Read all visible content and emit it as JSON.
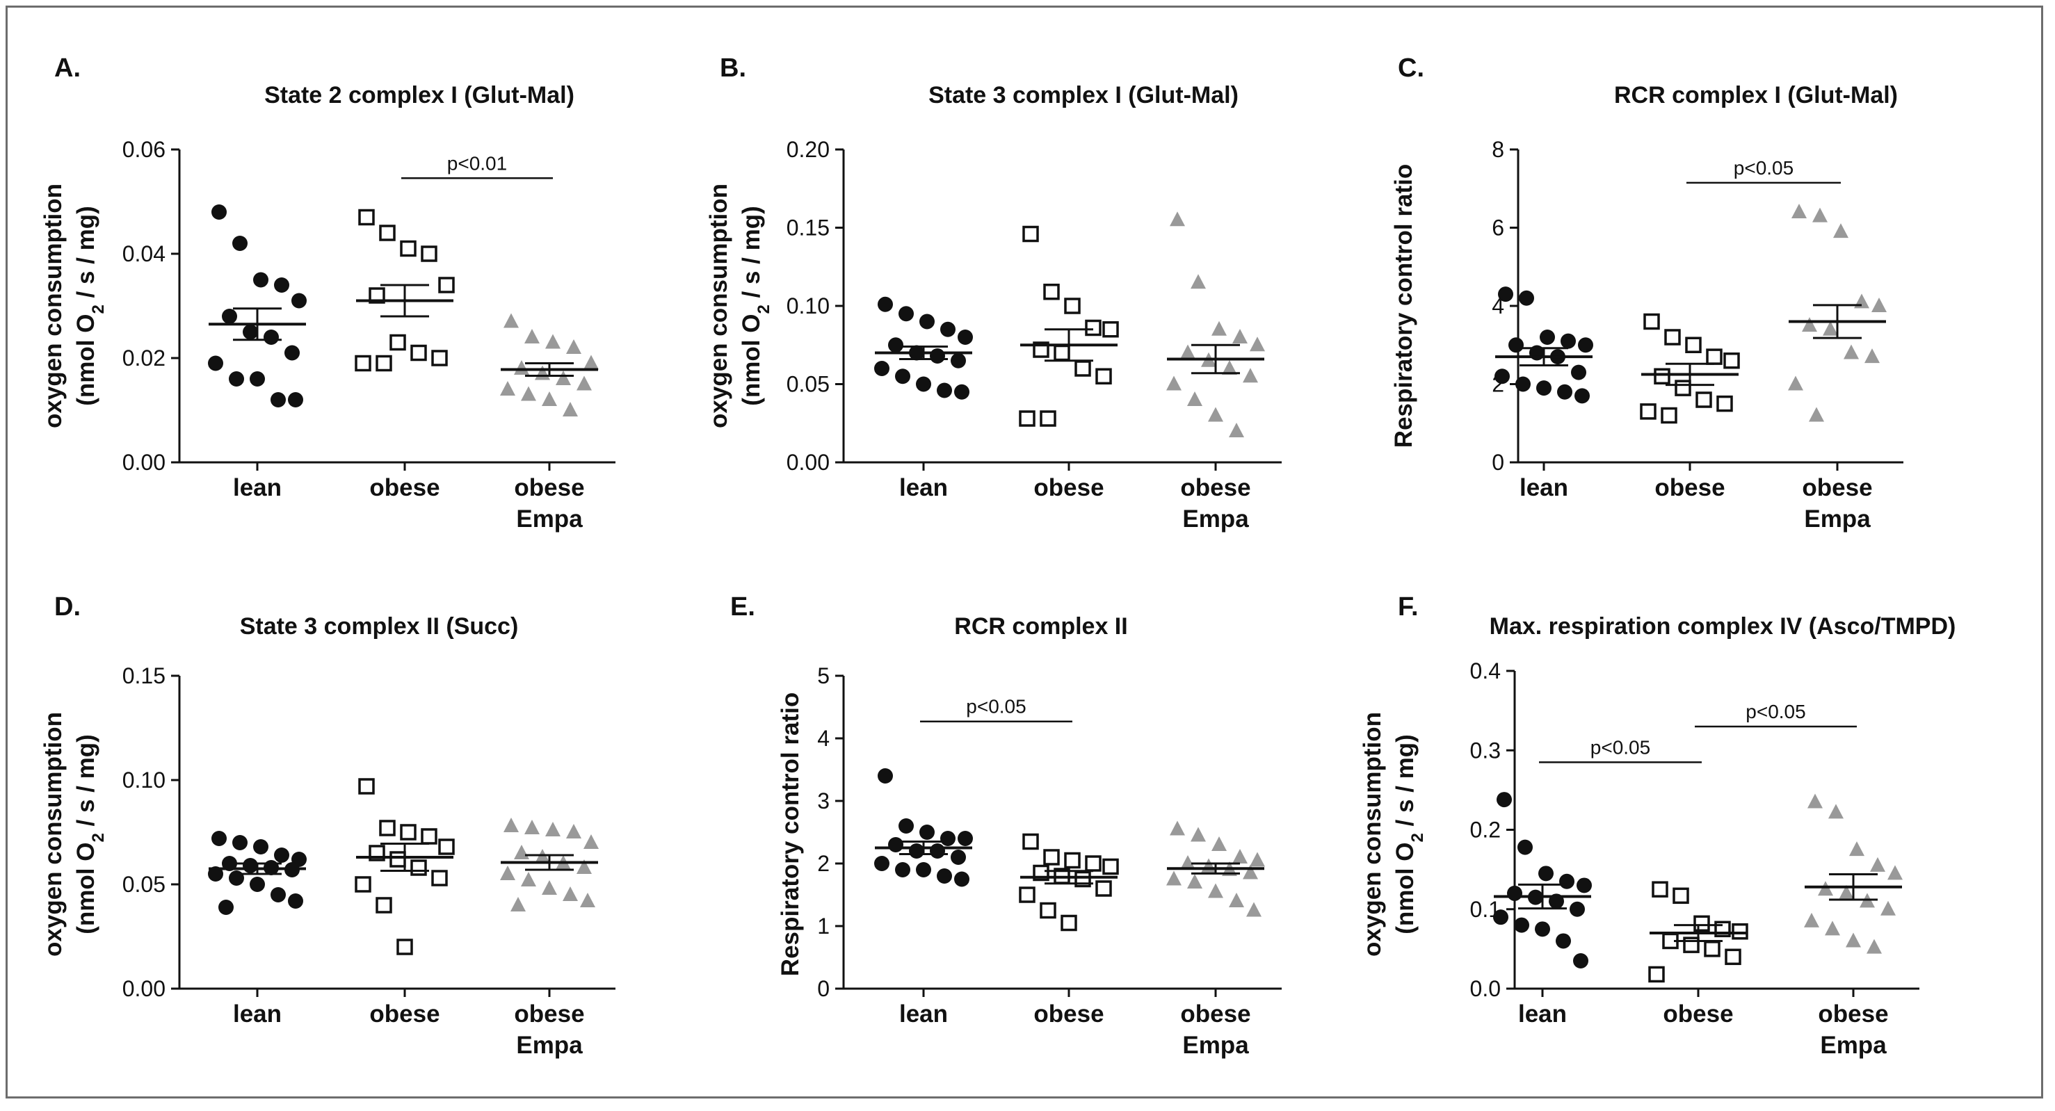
{
  "figure": {
    "colors": {
      "lean": "#111111",
      "obese": "#111111",
      "obese_empa": "#999999",
      "axis": "#111111",
      "frame": "#6d6d6d"
    }
  },
  "chart_data": [
    {
      "panel": "A.",
      "type": "scatter",
      "title": "State 2 complex I (Glut-Mal)",
      "ylabel": "oxygen consumption",
      "ylabel_units": [
        "(nmol O",
        "2",
        " / s / mg)"
      ],
      "ylim": [
        0,
        0.06
      ],
      "yticks": [
        "0.00",
        "0.02",
        "0.04",
        "0.06"
      ],
      "yticks_values": [
        0,
        0.02,
        0.04,
        0.06
      ],
      "categories": [
        [
          "lean"
        ],
        [
          "obese"
        ],
        [
          "obese",
          "Empa"
        ]
      ],
      "series": [
        {
          "name": "lean",
          "marker": "circle-filled",
          "mean": 0.0265,
          "sem": 0.003,
          "values": [
            0.048,
            0.042,
            0.035,
            0.034,
            0.031,
            0.028,
            0.025,
            0.024,
            0.021,
            0.019,
            0.016,
            0.016,
            0.012,
            0.012
          ]
        },
        {
          "name": "obese",
          "marker": "square-open",
          "mean": 0.031,
          "sem": 0.003,
          "values": [
            0.047,
            0.044,
            0.041,
            0.04,
            0.034,
            0.032,
            0.023,
            0.021,
            0.02,
            0.019,
            0.019
          ]
        },
        {
          "name": "obese Empa",
          "marker": "triangle-filled",
          "mean": 0.0178,
          "sem": 0.0012,
          "values": [
            0.027,
            0.024,
            0.023,
            0.022,
            0.019,
            0.018,
            0.017,
            0.016,
            0.015,
            0.014,
            0.013,
            0.012,
            0.01
          ]
        }
      ],
      "significance": [
        {
          "from": 1,
          "to": 2,
          "label": "p<0.01",
          "y": 0.0545
        }
      ]
    },
    {
      "panel": "B.",
      "type": "scatter",
      "title": "State 3 complex I (Glut-Mal)",
      "ylabel": "oxygen consumption",
      "ylabel_units": [
        "(nmol O",
        "2",
        " / s / mg)"
      ],
      "ylim": [
        0,
        0.2
      ],
      "yticks": [
        "0.00",
        "0.05",
        "0.10",
        "0.15",
        "0.20"
      ],
      "yticks_values": [
        0,
        0.05,
        0.1,
        0.15,
        0.2
      ],
      "categories": [
        [
          "lean"
        ],
        [
          "obese"
        ],
        [
          "obese",
          "Empa"
        ]
      ],
      "series": [
        {
          "name": "lean",
          "marker": "circle-filled",
          "mean": 0.07,
          "sem": 0.004,
          "values": [
            0.101,
            0.095,
            0.09,
            0.085,
            0.08,
            0.075,
            0.07,
            0.068,
            0.065,
            0.06,
            0.055,
            0.05,
            0.046,
            0.045
          ]
        },
        {
          "name": "obese",
          "marker": "square-open",
          "mean": 0.075,
          "sem": 0.01,
          "values": [
            0.146,
            0.109,
            0.1,
            0.086,
            0.085,
            0.072,
            0.07,
            0.06,
            0.055,
            0.028,
            0.028
          ]
        },
        {
          "name": "obese Empa",
          "marker": "triangle-filled",
          "mean": 0.066,
          "sem": 0.009,
          "values": [
            0.155,
            0.115,
            0.085,
            0.08,
            0.075,
            0.07,
            0.065,
            0.06,
            0.055,
            0.05,
            0.04,
            0.03,
            0.02
          ]
        }
      ],
      "significance": []
    },
    {
      "panel": "C.",
      "type": "scatter",
      "title": "RCR complex I (Glut-Mal)",
      "ylabel": "Respiratory control ratio",
      "ylim": [
        0,
        8
      ],
      "yticks": [
        "0",
        "2",
        "4",
        "6",
        "8"
      ],
      "yticks_values": [
        0,
        2,
        4,
        6,
        8
      ],
      "categories": [
        [
          "lean"
        ],
        [
          "obese"
        ],
        [
          "obese",
          "Empa"
        ]
      ],
      "series": [
        {
          "name": "lean",
          "marker": "circle-filled",
          "mean": 2.7,
          "sem": 0.22,
          "values": [
            4.3,
            4.2,
            3.2,
            3.1,
            3.0,
            3.0,
            2.8,
            2.7,
            2.3,
            2.2,
            2.0,
            1.9,
            1.8,
            1.7
          ]
        },
        {
          "name": "obese",
          "marker": "square-open",
          "mean": 2.25,
          "sem": 0.27,
          "values": [
            3.6,
            3.2,
            3.0,
            2.7,
            2.6,
            2.2,
            1.9,
            1.6,
            1.5,
            1.3,
            1.2
          ]
        },
        {
          "name": "obese Empa",
          "marker": "triangle-filled",
          "mean": 3.6,
          "sem": 0.42,
          "values": [
            6.4,
            6.3,
            5.9,
            4.1,
            4.0,
            3.5,
            3.4,
            2.8,
            2.7,
            2.0,
            1.2
          ]
        }
      ],
      "significance": [
        {
          "from": 1,
          "to": 2,
          "label": "p<0.05",
          "y": 7.15
        }
      ]
    },
    {
      "panel": "D.",
      "type": "scatter",
      "title": "State 3 complex II (Succ)",
      "ylabel": "oxygen consumption",
      "ylabel_units": [
        "(nmol O",
        "2",
        " / s / mg)"
      ],
      "ylim": [
        0,
        0.15
      ],
      "yticks": [
        "0.00",
        "0.05",
        "0.10",
        "0.15"
      ],
      "yticks_values": [
        0,
        0.05,
        0.1,
        0.15
      ],
      "categories": [
        [
          "lean"
        ],
        [
          "obese"
        ],
        [
          "obese",
          "Empa"
        ]
      ],
      "series": [
        {
          "name": "lean",
          "marker": "circle-filled",
          "mean": 0.0575,
          "sem": 0.0025,
          "values": [
            0.072,
            0.07,
            0.068,
            0.064,
            0.062,
            0.06,
            0.059,
            0.058,
            0.057,
            0.055,
            0.053,
            0.05,
            0.045,
            0.042,
            0.039
          ]
        },
        {
          "name": "obese",
          "marker": "square-open",
          "mean": 0.063,
          "sem": 0.0065,
          "values": [
            0.097,
            0.077,
            0.075,
            0.073,
            0.068,
            0.065,
            0.062,
            0.058,
            0.053,
            0.05,
            0.04,
            0.02
          ]
        },
        {
          "name": "obese Empa",
          "marker": "triangle-filled",
          "mean": 0.0605,
          "sem": 0.0035,
          "values": [
            0.078,
            0.077,
            0.076,
            0.075,
            0.07,
            0.065,
            0.063,
            0.06,
            0.058,
            0.055,
            0.052,
            0.048,
            0.045,
            0.042,
            0.04
          ]
        }
      ],
      "significance": []
    },
    {
      "panel": "E.",
      "type": "scatter",
      "title": "RCR complex II",
      "ylabel": "Respiratory control ratio",
      "ylim": [
        0,
        5
      ],
      "yticks": [
        "0",
        "1",
        "2",
        "3",
        "4",
        "5"
      ],
      "yticks_values": [
        0,
        1,
        2,
        3,
        4,
        5
      ],
      "categories": [
        [
          "lean"
        ],
        [
          "obese"
        ],
        [
          "obese",
          "Empa"
        ]
      ],
      "series": [
        {
          "name": "lean",
          "marker": "circle-filled",
          "mean": 2.25,
          "sem": 0.1,
          "values": [
            3.4,
            2.6,
            2.5,
            2.4,
            2.4,
            2.3,
            2.2,
            2.2,
            2.1,
            2.0,
            1.9,
            1.9,
            1.8,
            1.75
          ]
        },
        {
          "name": "obese",
          "marker": "square-open",
          "mean": 1.78,
          "sem": 0.1,
          "values": [
            2.35,
            2.1,
            2.05,
            2.0,
            1.95,
            1.85,
            1.8,
            1.75,
            1.6,
            1.5,
            1.25,
            1.05
          ]
        },
        {
          "name": "obese Empa",
          "marker": "triangle-filled",
          "mean": 1.92,
          "sem": 0.08,
          "values": [
            2.55,
            2.45,
            2.3,
            2.1,
            2.05,
            2.0,
            1.95,
            1.9,
            1.85,
            1.75,
            1.7,
            1.55,
            1.4,
            1.25
          ]
        }
      ],
      "significance": [
        {
          "from": 0,
          "to": 1,
          "label": "p<0.05",
          "y": 4.27
        }
      ]
    },
    {
      "panel": "F.",
      "type": "scatter",
      "title": "Max. respiration complex IV (Asco/TMPD)",
      "ylabel": "oxygen consumption",
      "ylabel_units": [
        "(nmol O",
        "2",
        " / s / mg)"
      ],
      "ylim": [
        0,
        0.4
      ],
      "yticks": [
        "0.0",
        "0.1",
        "0.2",
        "0.3",
        "0.4"
      ],
      "yticks_values": [
        0,
        0.1,
        0.2,
        0.3,
        0.4
      ],
      "categories": [
        [
          "lean"
        ],
        [
          "obese"
        ],
        [
          "obese",
          "Empa"
        ]
      ],
      "series": [
        {
          "name": "lean",
          "marker": "circle-filled",
          "mean": 0.116,
          "sem": 0.015,
          "values": [
            0.238,
            0.178,
            0.145,
            0.135,
            0.13,
            0.12,
            0.115,
            0.11,
            0.1,
            0.09,
            0.08,
            0.075,
            0.06,
            0.035
          ]
        },
        {
          "name": "obese",
          "marker": "square-open",
          "mean": 0.07,
          "sem": 0.01,
          "values": [
            0.125,
            0.117,
            0.082,
            0.075,
            0.072,
            0.06,
            0.055,
            0.05,
            0.04,
            0.018
          ]
        },
        {
          "name": "obese Empa",
          "marker": "triangle-filled",
          "mean": 0.128,
          "sem": 0.016,
          "values": [
            0.235,
            0.222,
            0.175,
            0.155,
            0.145,
            0.125,
            0.12,
            0.11,
            0.1,
            0.085,
            0.075,
            0.06,
            0.052
          ]
        }
      ],
      "significance": [
        {
          "from": 0,
          "to": 1,
          "label": "p<0.05",
          "y": 0.285
        },
        {
          "from": 1,
          "to": 2,
          "label": "p<0.05",
          "y": 0.33
        }
      ]
    }
  ]
}
